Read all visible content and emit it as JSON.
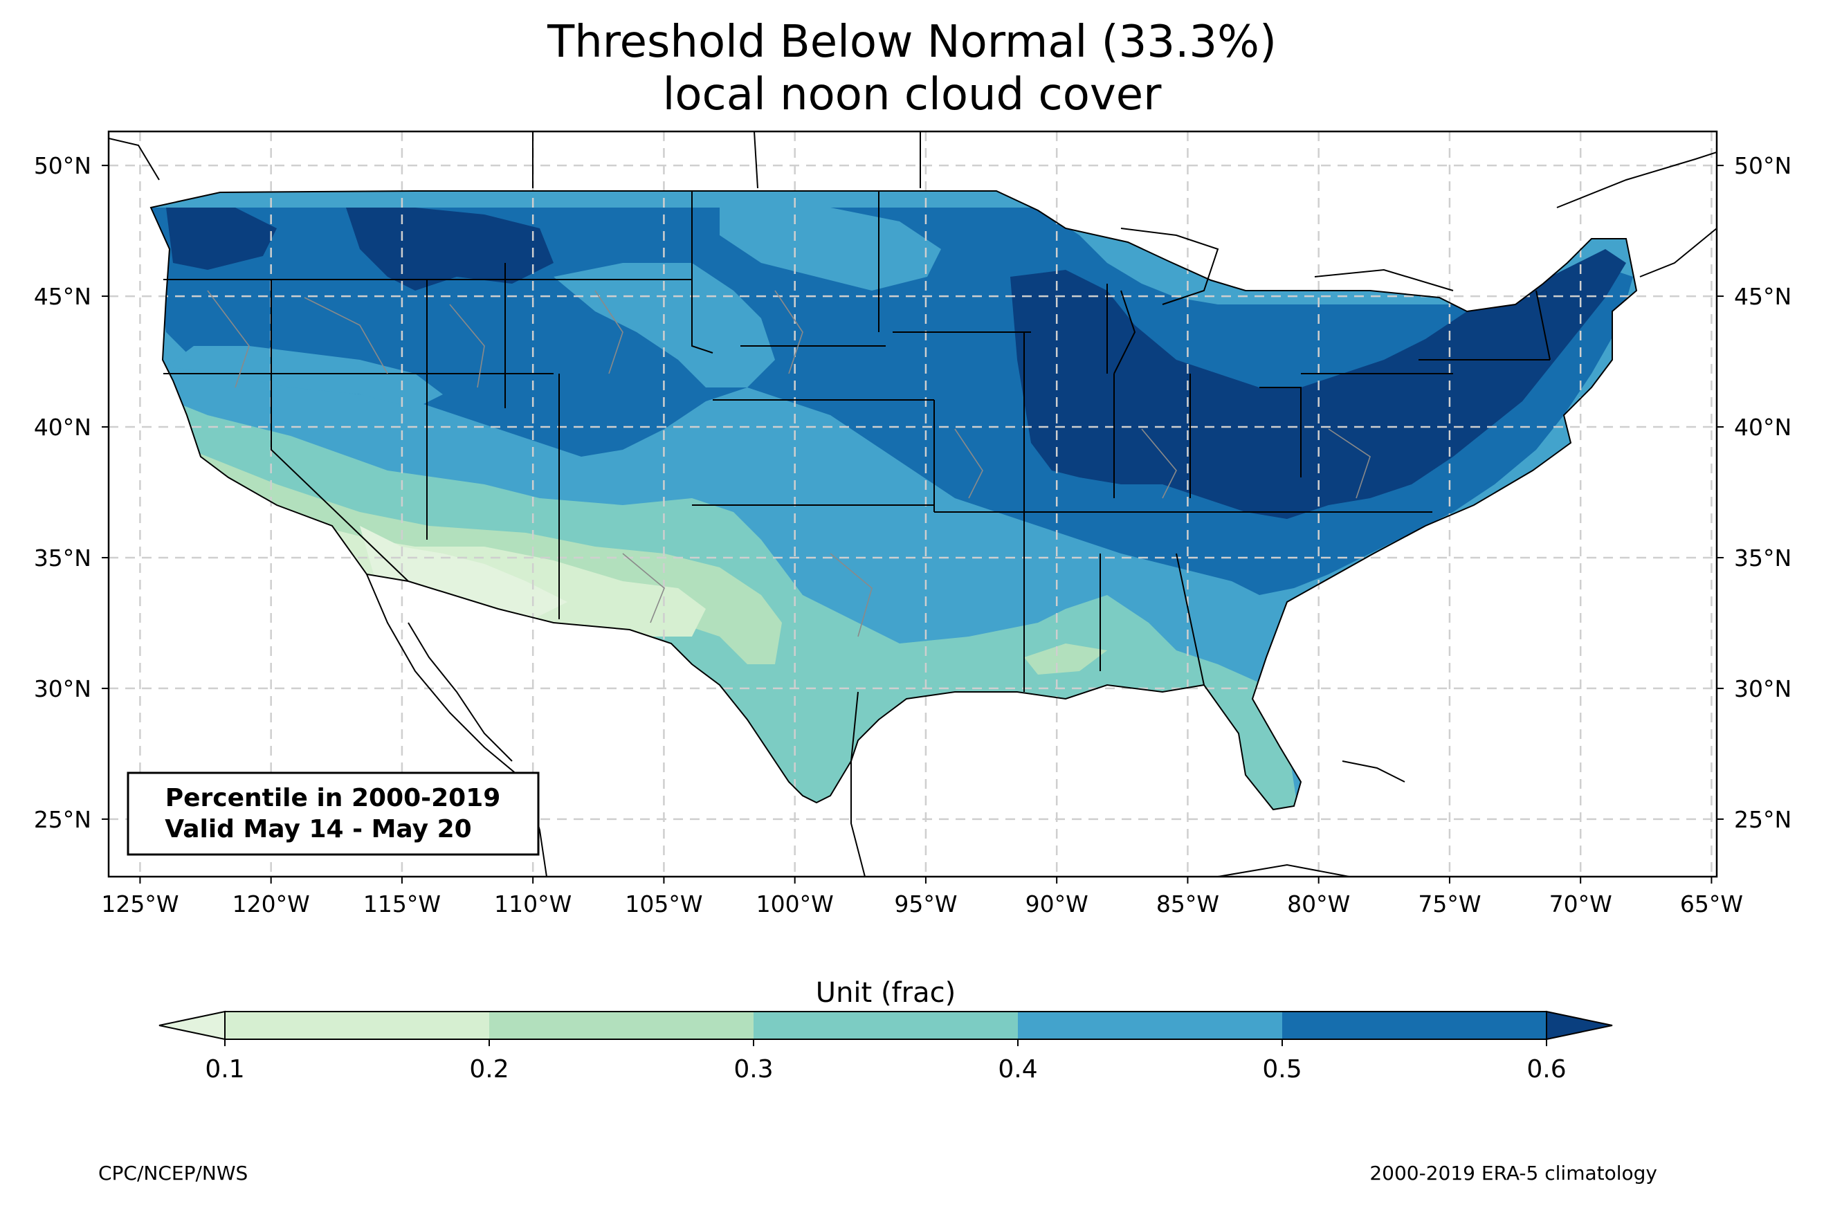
{
  "title_line1": "Threshold Below Normal (33.3%)",
  "title_line2": "local noon cloud cover",
  "info_box": {
    "line1": "Percentile in 2000-2019",
    "line2": "Valid May 14 - May 20"
  },
  "credit_left": "CPC/NCEP/NWS",
  "credit_right": "2000-2019 ERA-5 climatology",
  "colorbar": {
    "title": "Unit (frac)",
    "ticks": [
      "0.1",
      "0.2",
      "0.3",
      "0.4",
      "0.5",
      "0.6"
    ],
    "colors": [
      "#e3f3de",
      "#d6efd1",
      "#b2e0bd",
      "#7cccc3",
      "#43a3cc",
      "#166eae",
      "#0a3f7f"
    ],
    "extend": "both"
  },
  "map": {
    "lon_range": [
      -126.2,
      -64.8
    ],
    "lat_range": [
      22.8,
      51.3
    ],
    "lon_ticks": [
      "125°W",
      "120°W",
      "115°W",
      "110°W",
      "105°W",
      "100°W",
      "95°W",
      "90°W",
      "85°W",
      "80°W",
      "75°W",
      "70°W",
      "65°W"
    ],
    "lat_ticks": [
      "25°N",
      "30°N",
      "35°N",
      "40°N",
      "45°N",
      "50°N"
    ],
    "grid": true
  }
}
